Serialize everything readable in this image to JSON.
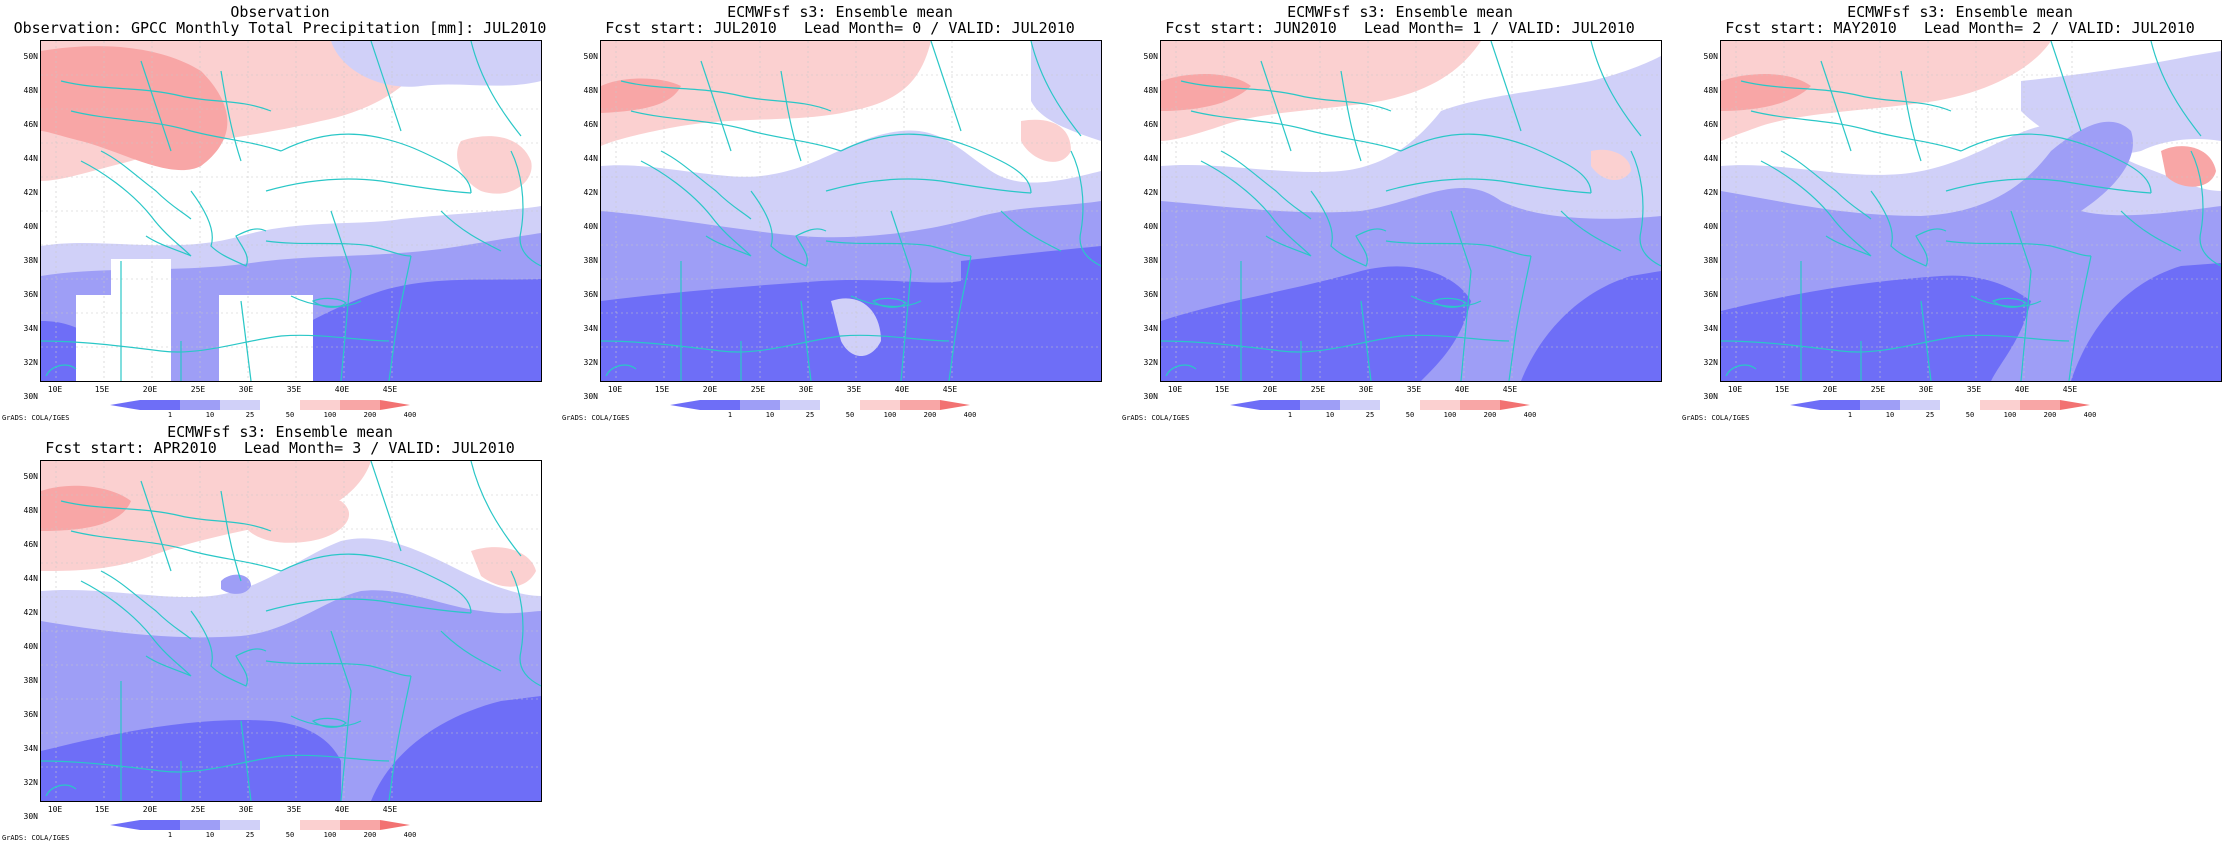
{
  "panels": [
    {
      "title_line1": "Observation",
      "title_line2": "Observation: GPCC Monthly Total Precipitation [mm]: JUL2010",
      "variant": "obs"
    },
    {
      "title_line1": "ECMWFsf s3: Ensemble mean",
      "title_line2": "Fcst start: JUL2010   Lead Month= 0 / VALID: JUL2010",
      "variant": "lead0"
    },
    {
      "title_line1": "ECMWFsf s3: Ensemble mean",
      "title_line2": "Fcst start: JUN2010   Lead Month= 1 / VALID: JUL2010",
      "variant": "lead1"
    },
    {
      "title_line1": "ECMWFsf s3: Ensemble mean",
      "title_line2": "Fcst start: MAY2010   Lead Month= 2 / VALID: JUL2010",
      "variant": "lead2"
    },
    {
      "title_line1": "ECMWFsf s3: Ensemble mean",
      "title_line2": "Fcst start: APR2010   Lead Month= 3 / VALID: JUL2010",
      "variant": "lead3"
    }
  ],
  "latitude_labels": [
    "50N",
    "48N",
    "46N",
    "44N",
    "42N",
    "40N",
    "38N",
    "36N",
    "34N",
    "32N",
    "30N"
  ],
  "longitude_labels": [
    "10E",
    "15E",
    "20E",
    "25E",
    "30E",
    "35E",
    "40E",
    "45E"
  ],
  "colorbar_labels": [
    "1",
    "10",
    "25",
    "50",
    "100",
    "200",
    "400"
  ],
  "colorbar_colors": [
    "#6e6ef7",
    "#9e9ef6",
    "#d0d0f8",
    "#ffffff",
    "#fbd0d0",
    "#f8a6a6",
    "#f27272"
  ],
  "credit": "GrADS: COLA/IGES",
  "colors": {
    "coast": "#2ac7c7",
    "grid": "#c8c8c8",
    "dry_strong": "#6e6ef7",
    "dry_mid": "#9e9ef6",
    "dry_light": "#d0d0f8",
    "wet_light": "#fbd0d0",
    "wet_mid": "#f8a6a6",
    "wet_strong": "#f27272"
  }
}
